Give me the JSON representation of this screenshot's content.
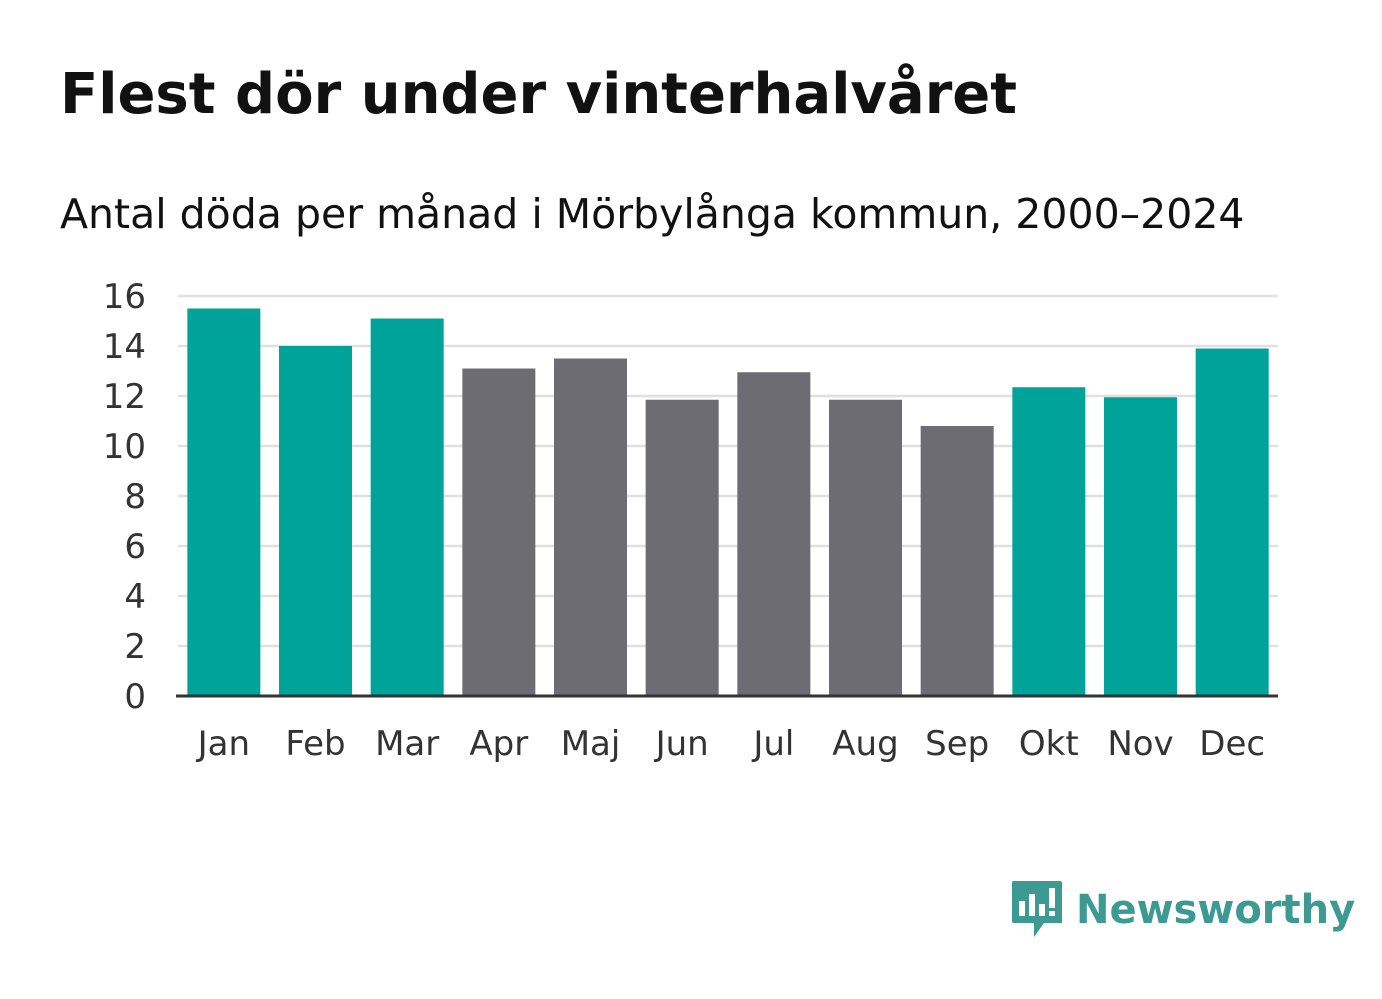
{
  "chart_data": {
    "type": "bar",
    "title": "Flest dör under vinterhalvåret",
    "subtitle": "Antal döda per månad i Mörbylånga kommun, 2000–2024",
    "xlabel": "",
    "ylabel": "",
    "ylim": [
      0,
      16
    ],
    "yticks": [
      0,
      2,
      4,
      6,
      8,
      10,
      12,
      14,
      16
    ],
    "grid": true,
    "categories": [
      "Jan",
      "Feb",
      "Mar",
      "Apr",
      "Maj",
      "Jun",
      "Jul",
      "Aug",
      "Sep",
      "Okt",
      "Nov",
      "Dec"
    ],
    "values": [
      15.5,
      14.0,
      15.1,
      13.1,
      13.5,
      11.85,
      12.95,
      11.85,
      10.8,
      12.35,
      11.95,
      13.9
    ],
    "highlight": [
      true,
      true,
      true,
      false,
      false,
      false,
      false,
      false,
      false,
      true,
      true,
      true
    ]
  },
  "colors": {
    "highlight": "#00a39a",
    "default": "#6d6c72",
    "grid": "#e0e0e0",
    "axis": "#333333",
    "brand": "#3c9a93"
  },
  "brand": {
    "name": "Newsworthy",
    "icon": "newsworthy-logo-icon"
  }
}
